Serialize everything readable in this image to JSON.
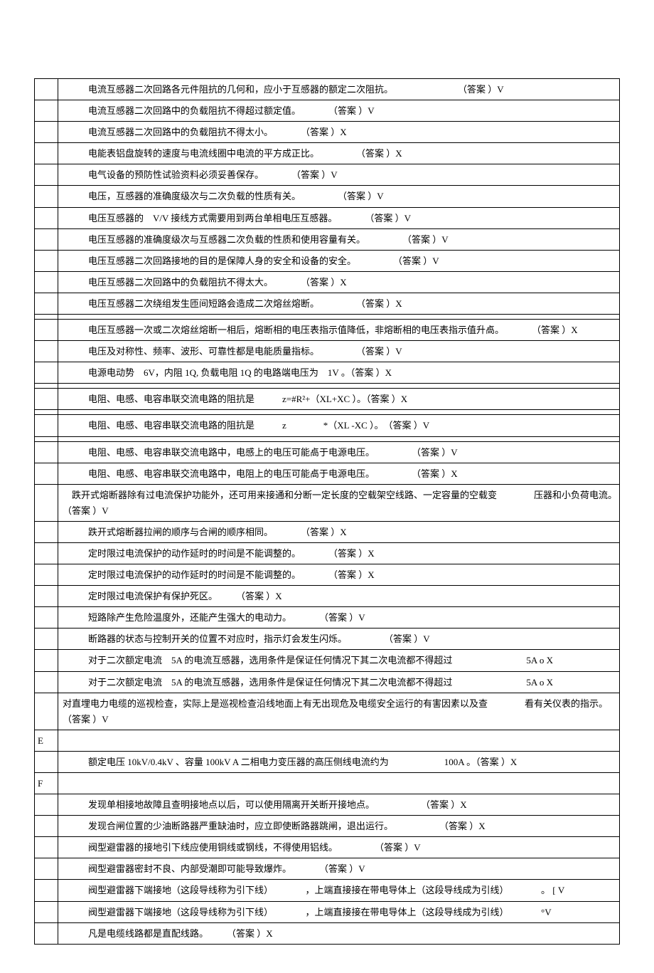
{
  "rows": [
    {
      "letter": "",
      "text": "电流互感器二次回路各元件阻抗的几何和，应小于互感器的额定二次阻抗。　　　　　　　　（答案 ）V",
      "indent": true
    },
    {
      "letter": "",
      "text": "电流互感器二次回路中的负载阻抗不得超过额定值。　　　　（答案 ）V",
      "indent": true
    },
    {
      "letter": "",
      "text": "电流互感器二次回路中的负载阻抗不得太小。　　　　（答案 ）X",
      "indent": true
    },
    {
      "letter": "",
      "text": "电能表铝盘旋转的速度与电流线圈中电流的平方成正比。　　　　　（答案 ）X",
      "indent": true
    },
    {
      "letter": "",
      "text": "电气设备的预防性试验资料必须妥善保存。　　　　（答案 ）V",
      "indent": true
    },
    {
      "letter": "",
      "text": "电压，互感器的准确度级次与二次负载的性质有关。　　　　　（答案 ）V",
      "indent": true
    },
    {
      "letter": "",
      "text": "电压互感器的　V/V 接线方式需要用到两台单相电压互感器。　　　　（答案 ）V",
      "indent": true
    },
    {
      "letter": "",
      "text": "电压互感器的准确度级次与互感器二次负载的性质和使用容量有关。　　　　　（答案 ）V",
      "indent": true
    },
    {
      "letter": "",
      "text": "电压互感器二次回路接地的目的是保障人身的安全和设备的安全。　　　　　（答案 ）V",
      "indent": true
    },
    {
      "letter": "",
      "text": "电压互感器二次回路中的负载阻抗不得太大。　　　　（答案 ）X",
      "indent": true
    },
    {
      "letter": "",
      "text": "电压互感器二次绕组发生匝间短路会造成二次熔丝熔断。　　　　　（答案 ）X",
      "indent": true
    },
    {
      "type": "spacer"
    },
    {
      "letter": "",
      "text": "电压互感器一次或二次熔丝熔断一相后，熔断相的电压表指示值降低，非熔断相的电压表指示值升卨。　　　　（答案 ）X",
      "indent": true
    },
    {
      "letter": "",
      "text": "电压及对称性、频率、波形、可靠性都是电能质量指标。　　　　　（答案 ）V",
      "indent": true
    },
    {
      "letter": "",
      "text": "电源电动势　6V，内阻 1Q, 负载电阻 1Q 的电路端电压为　1V 。（答案 ）X",
      "indent": true
    },
    {
      "type": "spacer"
    },
    {
      "letter": "",
      "text": "电阻、电感、电容串联交流电路的阻抗是　　　z=#R²+（XL+XC ）。（答案 ）X",
      "indent": true
    },
    {
      "type": "spacer"
    },
    {
      "letter": "",
      "text": "电阻、电感、电容串联交流电路的阻抗是　　　z　　　　*（XL -XC ）。　（答案 ）V",
      "indent": true
    },
    {
      "type": "spacer"
    },
    {
      "letter": "",
      "text": "电阻、电感、电容串联交流电路中，电感上的电压可能卨于电源电压。　　　　　（答案 ）V",
      "indent": true
    },
    {
      "letter": "",
      "text": "电阻、电感、电容串联交流电路中，电阻上的电压可能卨于电源电压。　　　　　（答案 ）X",
      "indent": true
    },
    {
      "letter": "",
      "text": "　跌开式熔断器除有过电流保护功能外，还可用来接通和分断一定长度的空载架空线路、一定容量的空载变　　　　压器和小负荷电流。　（答案 ）V",
      "indent": false
    },
    {
      "letter": "",
      "text": "跌开式熔断器拉闸的顺序与合闸的顺序相同。　　　　（答案 ）X",
      "indent": true
    },
    {
      "letter": "",
      "text": "定时限过电流保护的动作延时的时间是不能调整的。　　　　（答案 ）X",
      "indent": true
    },
    {
      "letter": "",
      "text": "定时限过电流保护的动作延时的时间是不能调整的。　　　　（答案 ）X",
      "indent": true
    },
    {
      "letter": "",
      "text": "定时限过电流保护有保护死区。　　　（答案 ）X",
      "indent": true
    },
    {
      "letter": "",
      "text": "短路除产生危险温度外，还能产生强大的电动力。　　　　（答案 ）V",
      "indent": true
    },
    {
      "letter": "",
      "text": "断路器的状态与控制开关的位置不对应时，指示灯会发生闪烁。　　　　　（答案 ）V",
      "indent": true
    },
    {
      "letter": "",
      "text": "对于二次额定电流　5A 的电流互感器，选用条件是保证任何情况下其二次电流都不得超过　　　　　　　　5A o X",
      "indent": true
    },
    {
      "letter": "",
      "text": "对于二次额定电流　5A 的电流互感器，选用条件是保证任何情况下其二次电流都不得超过　　　　　　　　5A o X",
      "indent": true
    },
    {
      "letter": "",
      "text": "对直埋电力电缆的巡视检查，实际上是巡视检查沿线地面上有无出现危及电缆安全运行的有害因素以及查　　　　看有关仪表的指示。　（答案 ）V",
      "indent": false
    },
    {
      "letter": "E",
      "text": "",
      "indent": false
    },
    {
      "letter": "",
      "text": "额定电压 10kV/0.4kV 、容量 100kV A 二相电力变压器的高压侧线电流约为　　　　　　100A 。（答案 ）X",
      "indent": true
    },
    {
      "letter": "F",
      "text": "",
      "indent": false
    },
    {
      "letter": "",
      "text": "发现单相接地故障且查明接地点以后，可以使用隔离开关断开接地点。　　　　　　（答案 ）X",
      "indent": true
    },
    {
      "letter": "",
      "text": "发现合闸位置的少油断路器严重缺油时，应立即使断路器跳闸，退出运行。　　　　　　（答案 ）X",
      "indent": true
    },
    {
      "letter": "",
      "text": "阀型避雷器的接地引下线应使用铜线或钢线，不得使用铝线。　　　　　（答案 ）V",
      "indent": true
    },
    {
      "letter": "",
      "text": "阀型避雷器密封不良、内部受潮即可能导致爆炸。　　　　（答案 ）V",
      "indent": true
    },
    {
      "letter": "",
      "text": "阀型避雷器下端接地（这段导线称为引下线）　　　　，上端直接接在带电导体上（这段导线成为引线）　　　　。 [ V",
      "indent": true
    },
    {
      "letter": "",
      "text": "阀型避雷器下端接地（这段导线称为引下线）　　　　，上端直接接在带电导体上（这段导线成为引线）　　　　°V",
      "indent": true
    },
    {
      "letter": "",
      "text": "凡是电缆线路都是直配线路。　　　（答案 ）X",
      "indent": true
    }
  ]
}
